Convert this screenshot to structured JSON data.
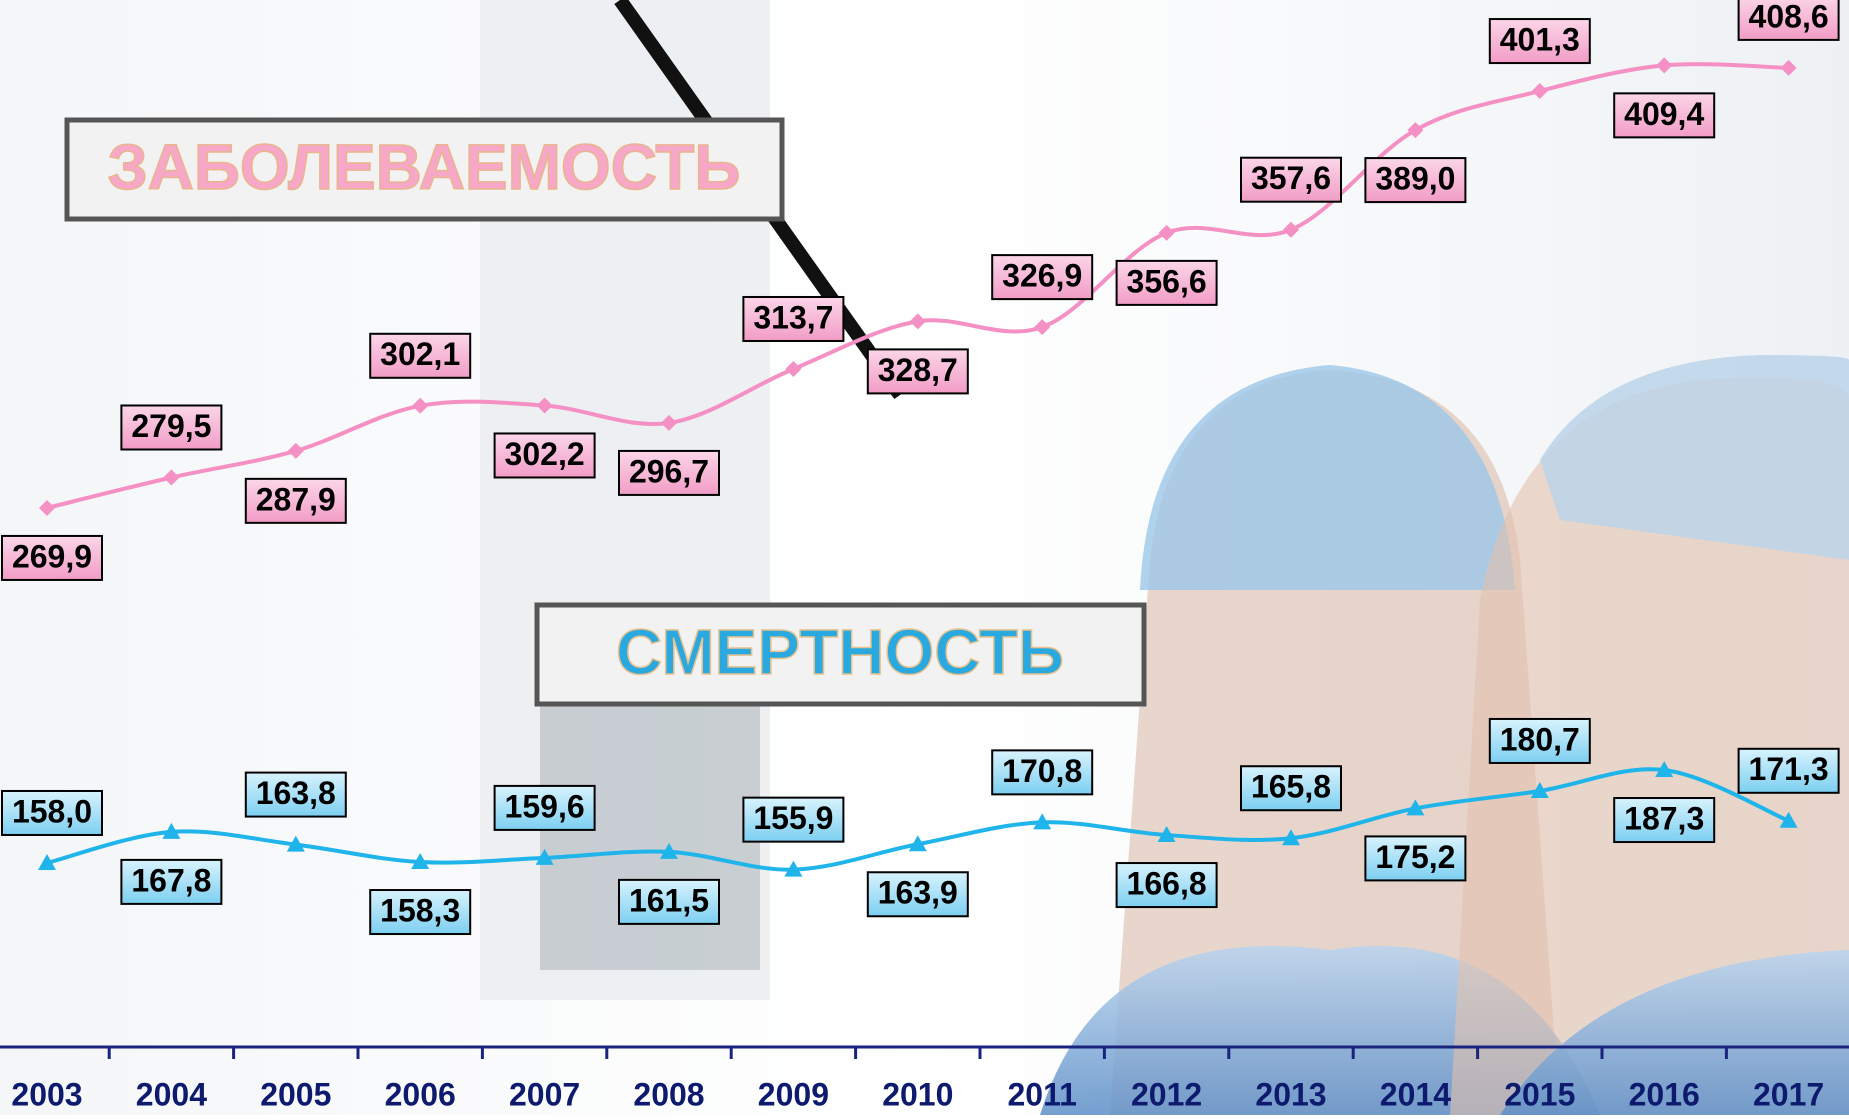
{
  "chart_data": {
    "type": "line",
    "categories": [
      "2003",
      "2004",
      "2005",
      "2006",
      "2007",
      "2008",
      "2009",
      "2010",
      "2011",
      "2012",
      "2013",
      "2014",
      "2015",
      "2016",
      "2017"
    ],
    "series": [
      {
        "name": "ЗАБОЛЕВАЕМОСТЬ",
        "color": "#f490c4",
        "values": [
          269.9,
          279.5,
          287.9,
          302.1,
          302.2,
          296.7,
          313.7,
          328.7,
          326.9,
          356.6,
          357.6,
          389.0,
          401.3,
          409.4,
          408.6
        ],
        "value_labels": [
          "269,9",
          "279,5",
          "287,9",
          "302,1",
          "302,2",
          "296,7",
          "313,7",
          "328,7",
          "326,9",
          "356,6",
          "357,6",
          "389,0",
          "401,3",
          "409,4",
          "408,6"
        ]
      },
      {
        "name": "СМЕРТНОСТЬ",
        "color": "#1fb4ea",
        "values": [
          158.0,
          167.8,
          163.8,
          158.3,
          159.6,
          161.5,
          155.9,
          163.9,
          170.8,
          166.8,
          165.8,
          175.2,
          180.7,
          187.3,
          171.3
        ],
        "value_labels": [
          "158,0",
          "167,8",
          "163,8",
          "158,3",
          "159,6",
          "161,5",
          "155,9",
          "163,9",
          "170,8",
          "166,8",
          "165,8",
          "175,2",
          "180,7",
          "187,3",
          "171,3"
        ]
      }
    ],
    "ylim": [
      100,
      430
    ]
  }
}
